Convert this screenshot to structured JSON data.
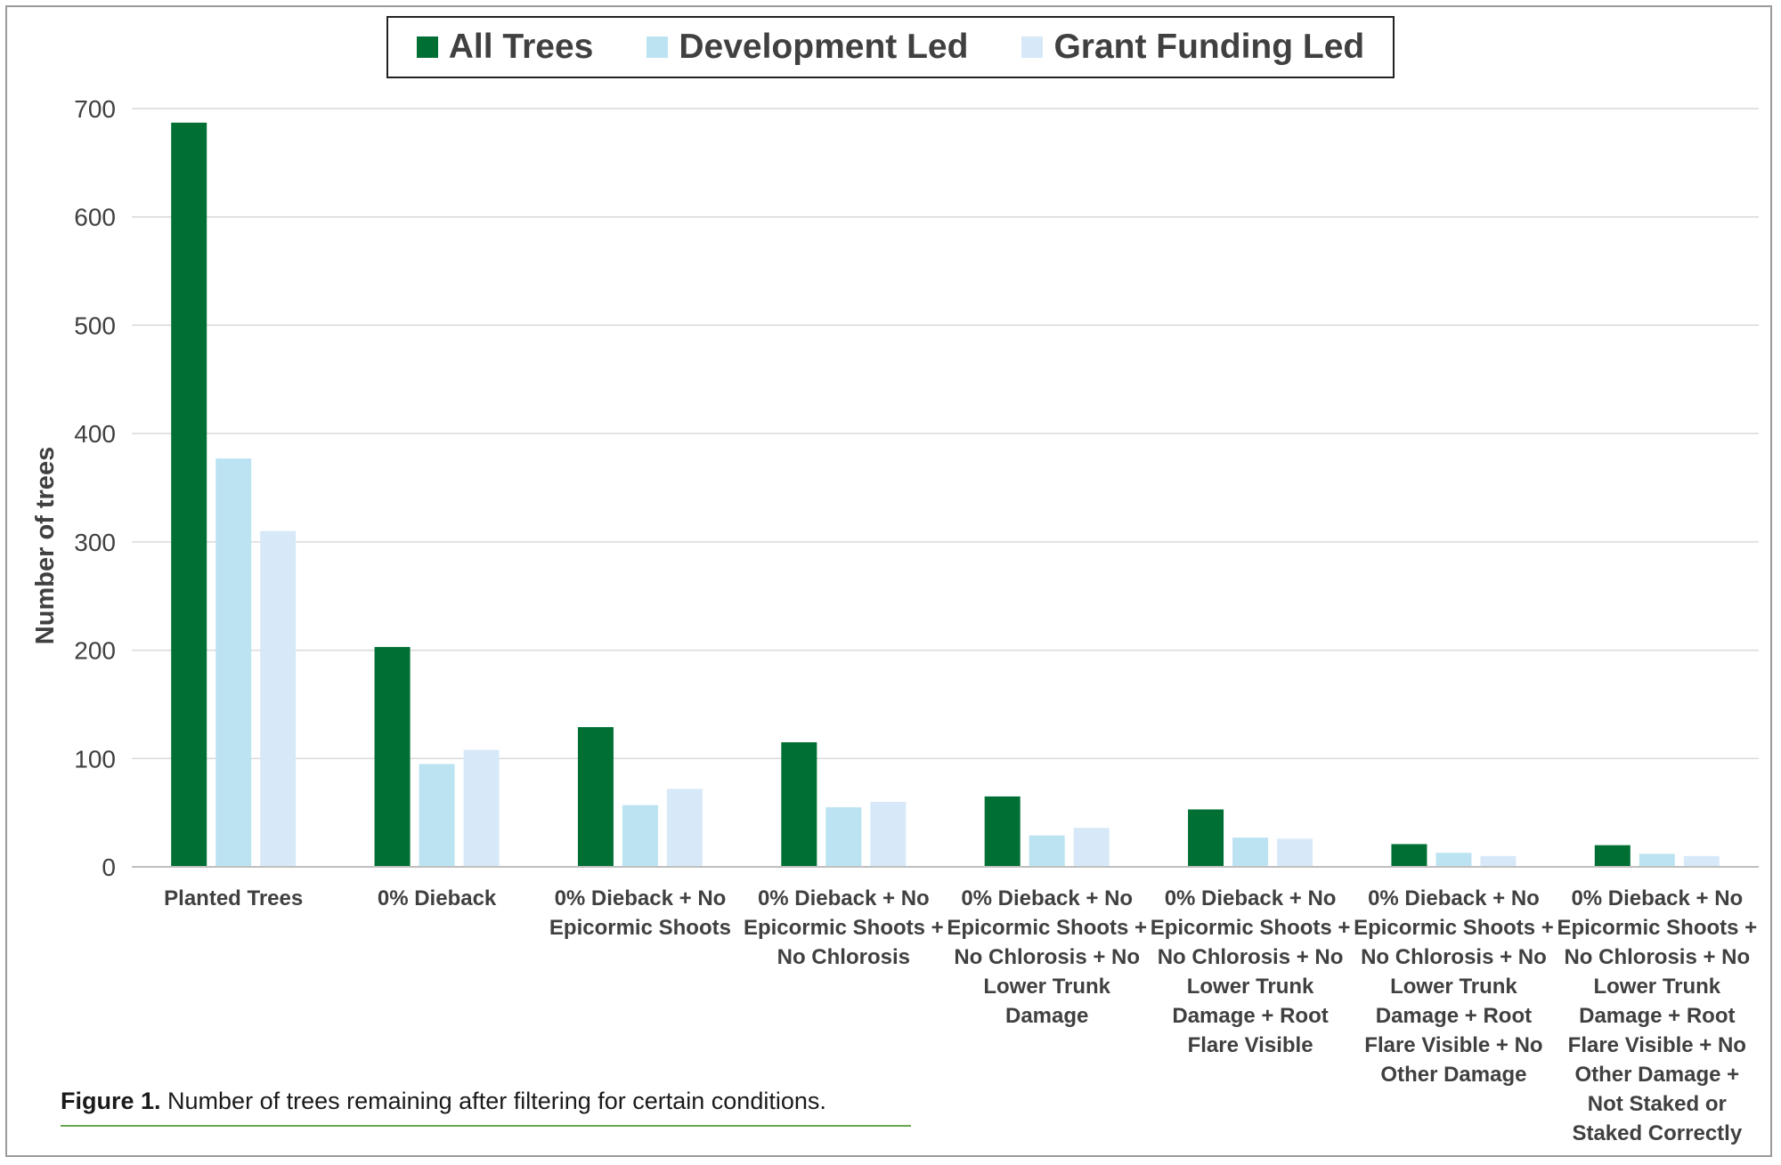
{
  "chart_data": {
    "type": "bar",
    "categories": [
      "Planted Trees",
      "0% Dieback",
      "0% Dieback + No Epicormic Shoots",
      "0% Dieback + No Epicormic Shoots + No Chlorosis",
      "0% Dieback + No Epicormic Shoots + No Chlorosis + No Lower Trunk Damage",
      "0% Dieback + No Epicormic Shoots + No Chlorosis + No Lower Trunk Damage + Root Flare Visible",
      "0% Dieback + No Epicormic Shoots + No Chlorosis + No Lower Trunk Damage + Root Flare Visible + No Other Damage",
      "0% Dieback + No Epicormic Shoots + No Chlorosis + No Lower Trunk Damage + Root Flare Visible + No Other Damage + Not Staked or Staked Correctly"
    ],
    "category_lines": [
      [
        "Planted Trees"
      ],
      [
        "0% Dieback"
      ],
      [
        "0% Dieback + No",
        "Epicormic Shoots"
      ],
      [
        "0% Dieback + No",
        "Epicormic Shoots +",
        "No Chlorosis"
      ],
      [
        "0% Dieback + No",
        "Epicormic Shoots +",
        "No Chlorosis + No",
        "Lower Trunk",
        "Damage"
      ],
      [
        "0% Dieback + No",
        "Epicormic Shoots +",
        "No Chlorosis + No",
        "Lower Trunk",
        "Damage + Root",
        "Flare Visible"
      ],
      [
        "0% Dieback + No",
        "Epicormic Shoots +",
        "No Chlorosis + No",
        "Lower Trunk",
        "Damage + Root",
        "Flare Visible + No",
        "Other Damage"
      ],
      [
        "0% Dieback + No",
        "Epicormic Shoots +",
        "No Chlorosis + No",
        "Lower Trunk",
        "Damage + Root",
        "Flare Visible + No",
        "Other Damage +",
        "Not Staked or",
        "Staked Correctly"
      ]
    ],
    "series": [
      {
        "name": "All Trees",
        "color": "#006f34",
        "values": [
          687,
          203,
          129,
          115,
          65,
          53,
          21,
          20
        ]
      },
      {
        "name": "Development Led",
        "color": "#bce3f2",
        "values": [
          377,
          95,
          57,
          55,
          29,
          27,
          13,
          12
        ]
      },
      {
        "name": "Grant Funding Led",
        "color": "#d7e9f8",
        "values": [
          310,
          108,
          72,
          60,
          36,
          26,
          10,
          10
        ]
      }
    ],
    "title": "",
    "xlabel": "",
    "ylabel": "Number of trees",
    "ylim": [
      0,
      700
    ],
    "yticks": [
      0,
      100,
      200,
      300,
      400,
      500,
      600,
      700
    ],
    "grid": true,
    "legend_position": "top-center"
  },
  "caption": {
    "label": "Figure 1.",
    "text": " Number of trees remaining after filtering for certain conditions."
  }
}
